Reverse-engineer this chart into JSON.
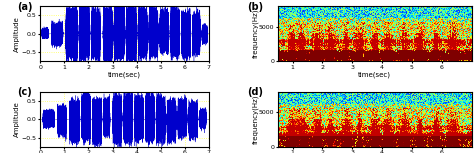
{
  "fig_width": 4.74,
  "fig_height": 1.53,
  "dpi": 100,
  "panels": [
    "a",
    "b",
    "c",
    "d"
  ],
  "waveform_color": "#0000CC",
  "waveform_xlim": [
    0,
    7
  ],
  "waveform_ylim": [
    -0.75,
    0.75
  ],
  "waveform_yticks": [
    -0.5,
    0,
    0.5
  ],
  "waveform_xticks": [
    0,
    1,
    2,
    3,
    4,
    5,
    6,
    7
  ],
  "waveform_xlabel": "time(sec)",
  "waveform_ylabel": "Amplitude",
  "spectrogram_xlim": [
    0.5,
    7.0
  ],
  "spectrogram_ylim": [
    0,
    8000
  ],
  "spectrogram_yticks": [
    0,
    5000
  ],
  "spectrogram_yticklabels": [
    "0",
    "5000"
  ],
  "spectrogram_xticks": [
    1,
    2,
    3,
    4,
    5,
    6
  ],
  "spectrogram_xlabel": "time(sec)",
  "spectrogram_ylabel": "frequency(Hz)",
  "grid_color": "#FFFF00",
  "grid_alpha": 0.7,
  "grid_linestyle": ":",
  "background_color": "#FFFFFF",
  "panel_label_fontsize": 7,
  "axis_label_fontsize": 5.0,
  "tick_fontsize": 4.5
}
